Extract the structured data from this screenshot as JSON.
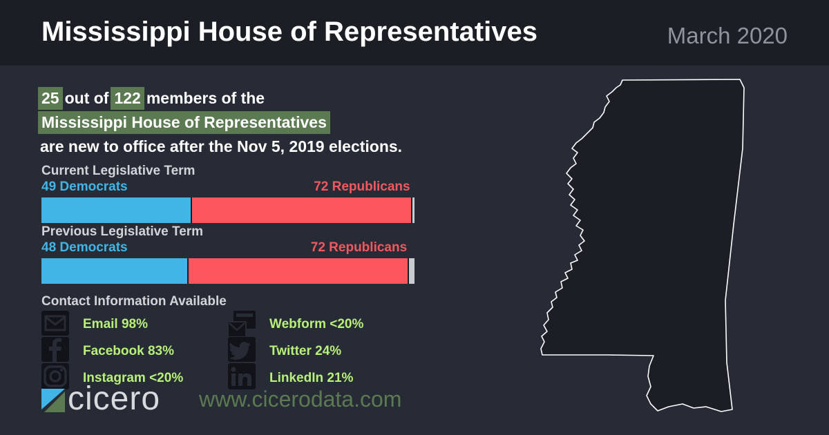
{
  "header": {
    "title": "Mississippi House of Representatives",
    "date": "March 2020"
  },
  "intro": {
    "new_count": "25",
    "out_of": "out of",
    "total": "122",
    "members_of_the": "members of the",
    "body_name": "Mississippi House of Representatives",
    "suffix": "are new to office after the Nov 5, 2019 elections."
  },
  "current_term": {
    "label": "Current Legislative Term",
    "democrats": 49,
    "republicans": 72,
    "vacant": 1,
    "democrats_label": "49 Democrats",
    "republicans_label": "72 Republicans"
  },
  "previous_term": {
    "label": "Previous Legislative Term",
    "democrats": 48,
    "republicans": 72,
    "vacant": 2,
    "democrats_label": "48 Democrats",
    "republicans_label": "72 Republicans"
  },
  "contact": {
    "title": "Contact Information Available",
    "items": [
      {
        "icon": "envelope-icon",
        "label": "Email 98%"
      },
      {
        "icon": "webform-icon",
        "label": "Webform <20%"
      },
      {
        "icon": "facebook-icon",
        "label": "Facebook 83%"
      },
      {
        "icon": "twitter-icon",
        "label": "Twitter 24%"
      },
      {
        "icon": "instagram-icon",
        "label": "Instagram <20%"
      },
      {
        "icon": "linkedin-icon",
        "label": "LinkedIn 21%"
      }
    ]
  },
  "footer": {
    "logo_text": "cicero",
    "url": "www.cicerodata.com"
  },
  "colors": {
    "democrat": "#41b6e6",
    "republican": "#fe565e",
    "vacant": "#c9cbd0",
    "highlight": "#5c7a52",
    "contact_text": "#b9f07a"
  }
}
